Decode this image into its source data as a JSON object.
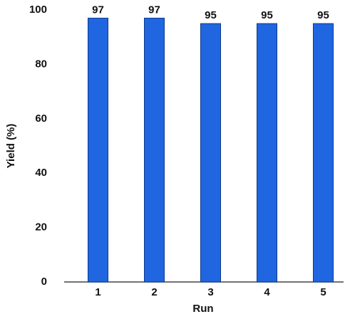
{
  "chart_data": {
    "type": "bar",
    "x_label": "Run",
    "y_label": "Yield (%)",
    "categories": [
      "1",
      "2",
      "3",
      "4",
      "5"
    ],
    "values": [
      97,
      97,
      95,
      95,
      95
    ],
    "color": "#1f66e0",
    "ylim": [
      0,
      100
    ],
    "yticks": [
      0,
      20,
      40,
      60,
      80,
      100
    ],
    "grid": false
  }
}
